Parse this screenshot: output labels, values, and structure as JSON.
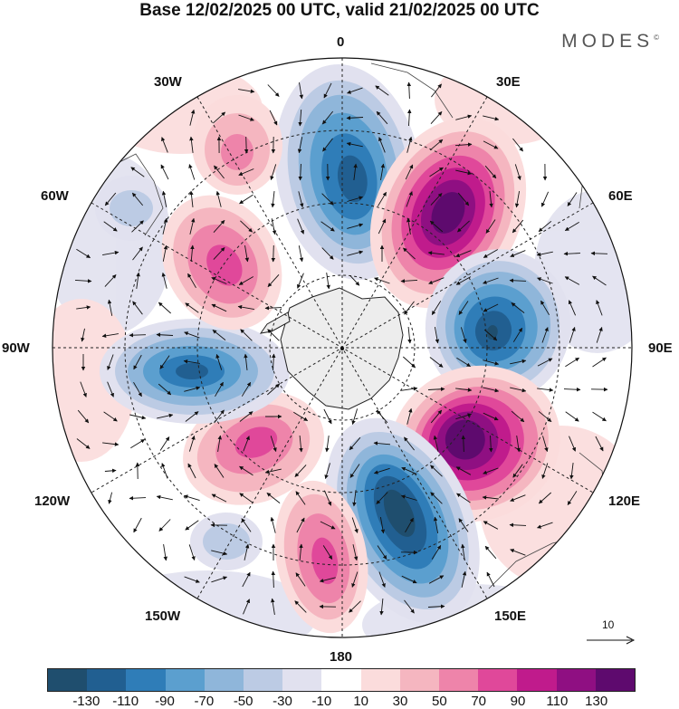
{
  "title": "Base 12/02/2025 00 UTC, valid 21/02/2025 00 UTC",
  "brand": "MODES",
  "brand_mark": "©",
  "lon_labels": {
    "l0": "0",
    "l30e": "30E",
    "l60e": "60E",
    "l90e": "90E",
    "l120e": "120E",
    "l150e": "150E",
    "l180": "180",
    "l150w": "150W",
    "l120w": "120W",
    "l90w": "90W",
    "l60w": "60W",
    "l30w": "30W"
  },
  "reference_vector": "10",
  "colorbar": {
    "colors": [
      "#1f4e6e",
      "#215f91",
      "#2f7db8",
      "#5b9fcf",
      "#8fb6da",
      "#bccbe4",
      "#e1e1ef",
      "#ffffff",
      "#fbdcdc",
      "#f5b6c0",
      "#ee84aa",
      "#e0489a",
      "#c01b8c",
      "#8f0f82",
      "#5e0a6e"
    ],
    "ticks": [
      "-130",
      "-110",
      "-90",
      "-70",
      "-50",
      "-30",
      "-10",
      "10",
      "30",
      "50",
      "70",
      "90",
      "110",
      "130"
    ]
  },
  "anomaly_centers": [
    {
      "sign": "negative",
      "level": -110,
      "lon": "near 0 / 30E"
    },
    {
      "sign": "positive",
      "level": 130,
      "lon": "near 45E"
    },
    {
      "sign": "negative",
      "level": -110,
      "lon": "near 90E"
    },
    {
      "sign": "positive",
      "level": 130,
      "lon": "near 120E"
    },
    {
      "sign": "negative",
      "level": -130,
      "lon": "near 160E"
    },
    {
      "sign": "positive",
      "level": 70,
      "lon": "near 160W"
    },
    {
      "sign": "negative",
      "level": -50,
      "lon": "near 140W"
    },
    {
      "sign": "positive",
      "level": 70,
      "lon": "near 120W"
    },
    {
      "sign": "negative",
      "level": -90,
      "lon": "near 90W"
    },
    {
      "sign": "positive",
      "level": 70,
      "lon": "near 60W"
    },
    {
      "sign": "positive",
      "level": 50,
      "lon": "near 30W"
    },
    {
      "sign": "negative",
      "level": -30,
      "lon": "near 60W"
    }
  ]
}
